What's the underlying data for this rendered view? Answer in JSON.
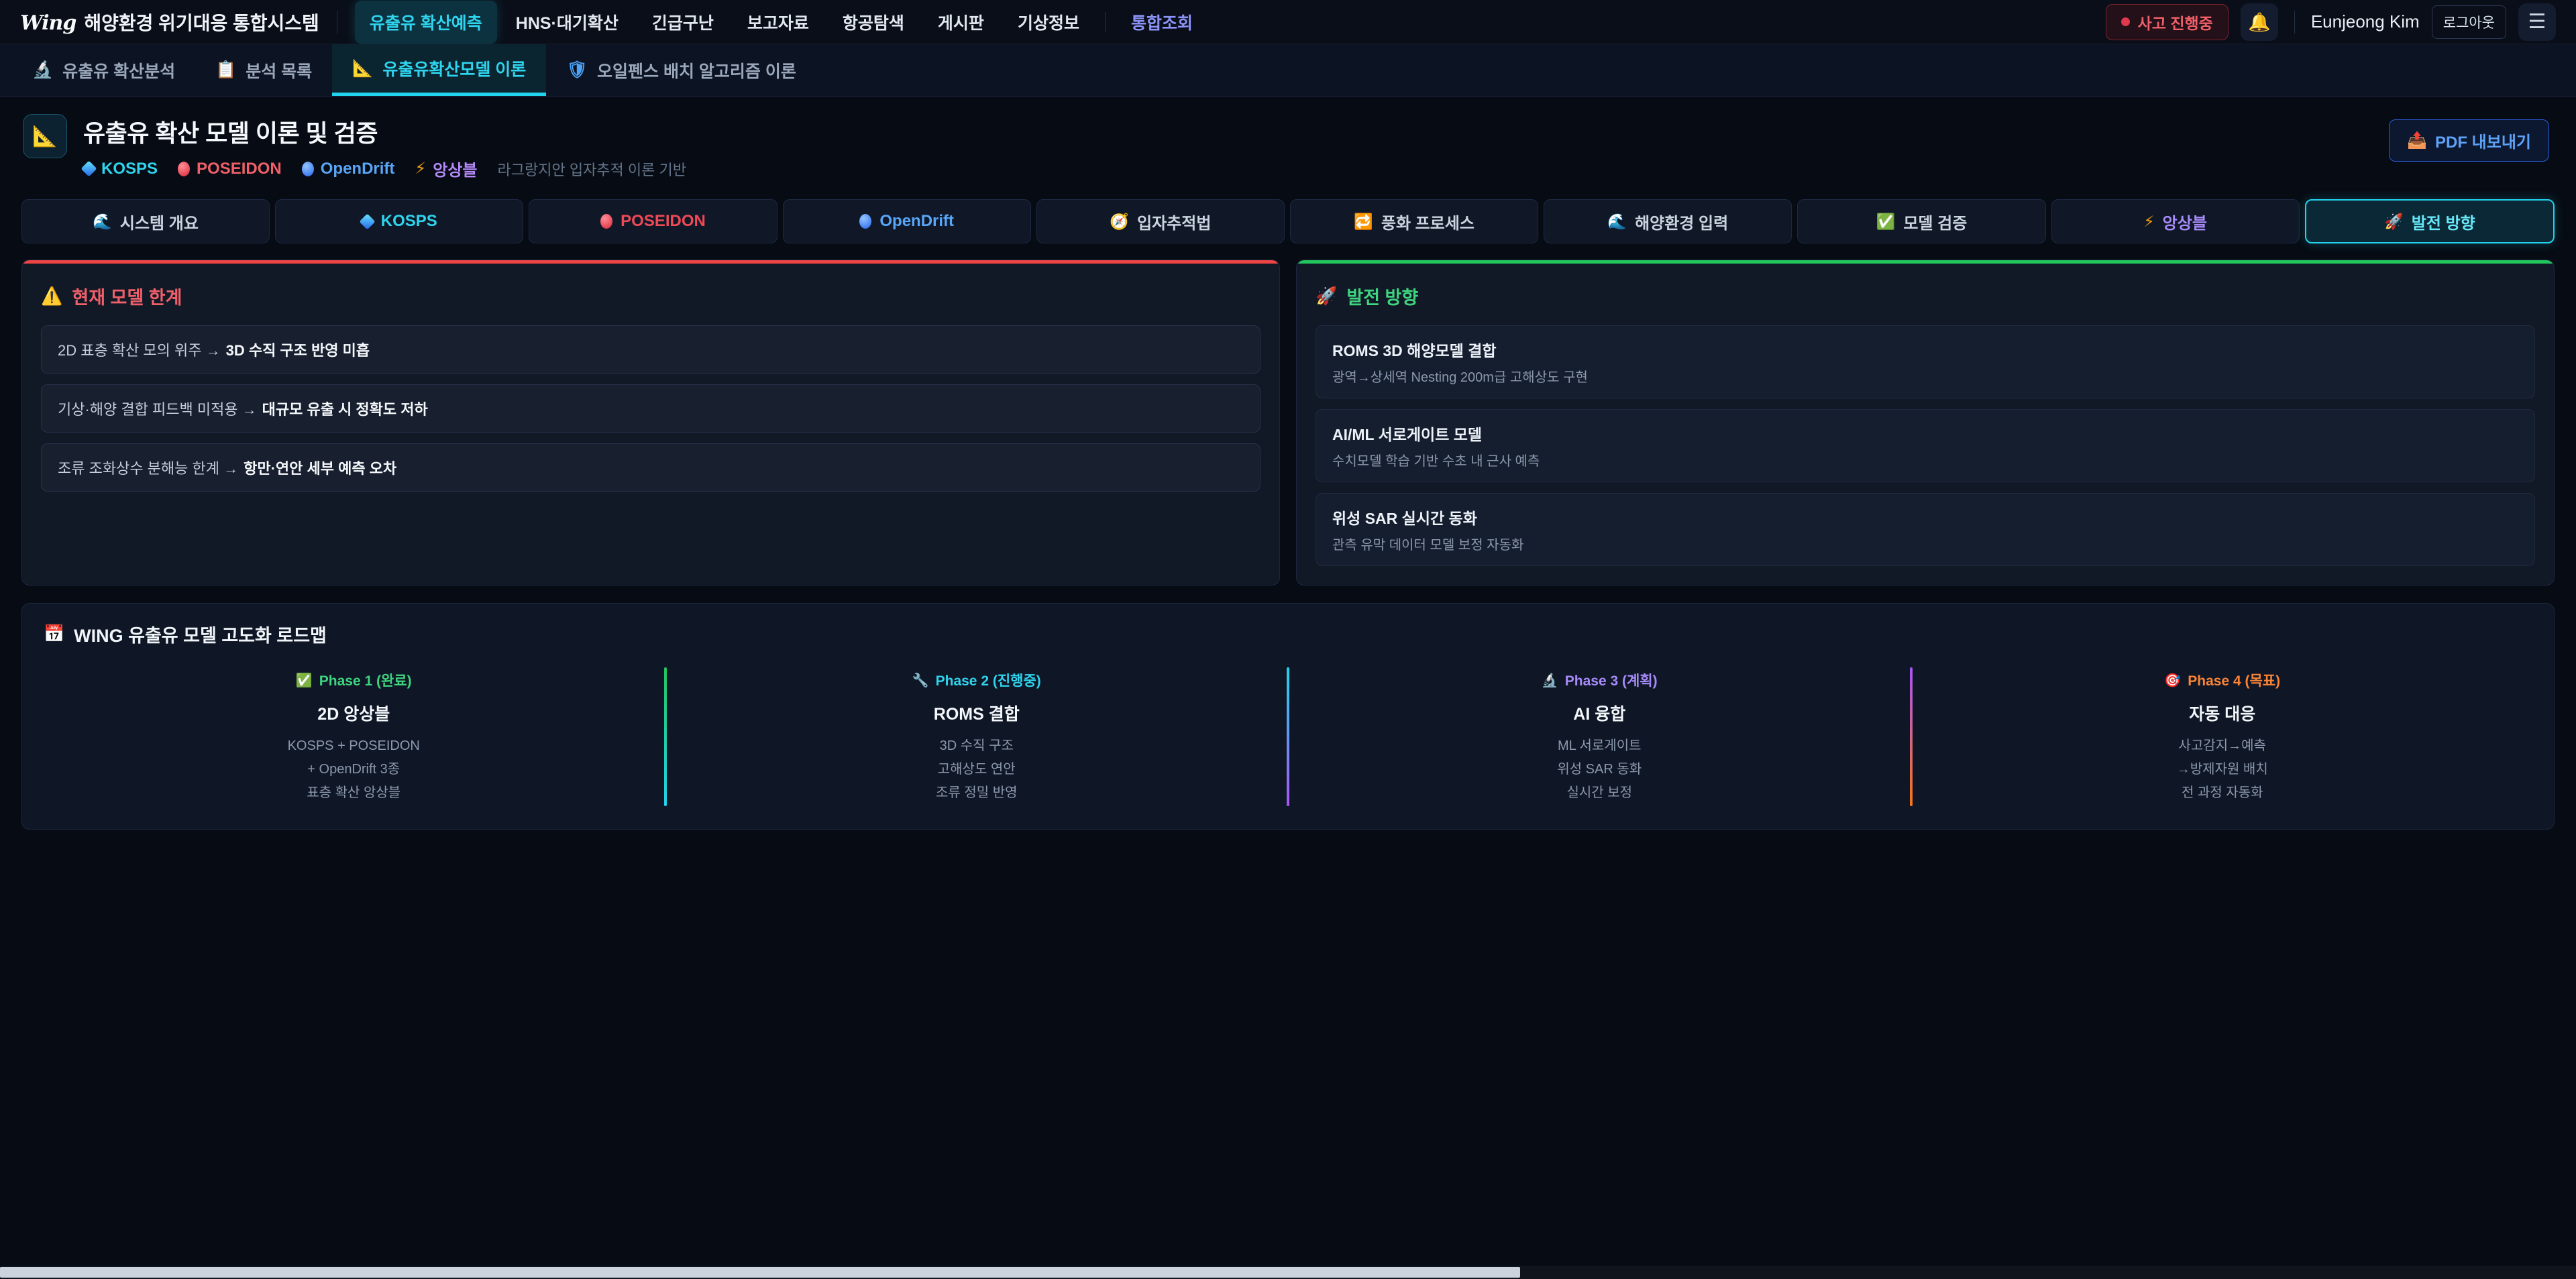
{
  "colors": {
    "accent_cyan": "#22d3ee",
    "danger_red": "#ef4444",
    "success_green": "#22c55e",
    "purple": "#a78bfa",
    "orange": "#fb923c",
    "blue": "#60a5fa",
    "page_bg": "#070b13"
  },
  "navbar": {
    "brand_script": "Wing",
    "brand_title": "해양환경 위기대응 통합시스템",
    "items": [
      {
        "label": "유출유 확산예측"
      },
      {
        "label": "HNS·대기확산"
      },
      {
        "label": "긴급구난"
      },
      {
        "label": "보고자료"
      },
      {
        "label": "항공탐색"
      },
      {
        "label": "게시판"
      },
      {
        "label": "기상정보"
      },
      {
        "label": "통합조회"
      }
    ],
    "alert_badge": "사고 진행중",
    "bell_glyph": "🔔",
    "user_name": "Eunjeong Kim",
    "logout_label": "로그아웃",
    "hamburger_glyph": "☰"
  },
  "subnav": {
    "items": [
      {
        "glyph": "🔬",
        "label": "유출유 확산분석"
      },
      {
        "glyph": "📋",
        "label": "분석 목록"
      },
      {
        "glyph": "📐",
        "label": "유출유확산모델 이론"
      },
      {
        "glyph": "🛡",
        "label": "오일펜스 배치 알고리즘 이론"
      }
    ]
  },
  "header": {
    "icon_glyph": "📐",
    "title": "유출유 확산 모델 이론 및 검증",
    "badges": [
      {
        "label": "KOSPS"
      },
      {
        "label": "POSEIDON"
      },
      {
        "label": "OpenDrift"
      },
      {
        "glyph": "⚡",
        "label": "앙상블"
      }
    ],
    "note": "라그랑지안 입자추적 이론 기반",
    "pdf_button": {
      "glyph": "📤",
      "label": "PDF 내보내기"
    }
  },
  "section_tabs": [
    {
      "glyph": "🌊",
      "label": "시스템 개요"
    },
    {
      "glyph": "",
      "label": "KOSPS"
    },
    {
      "glyph": "",
      "label": "POSEIDON"
    },
    {
      "glyph": "",
      "label": "OpenDrift"
    },
    {
      "glyph": "🧭",
      "label": "입자추적법"
    },
    {
      "glyph": "🔁",
      "label": "풍화 프로세스"
    },
    {
      "glyph": "🌊",
      "label": "해양환경 입력"
    },
    {
      "glyph": "✅",
      "label": "모델 검증"
    },
    {
      "glyph": "⚡",
      "label": "앙상블"
    },
    {
      "glyph": "🚀",
      "label": "발전 방향"
    }
  ],
  "limitations": {
    "icon_glyph": "⚠️",
    "title": "현재 모델 한계",
    "items": [
      {
        "pre": "2D 표층 확산 모의 위주 →",
        "bold": "3D 수직 구조 반영 미흡"
      },
      {
        "pre": "기상·해양 결합 피드백 미적용 →",
        "bold": "대규모 유출 시 정확도 저하"
      },
      {
        "pre": "조류 조화상수 분해능 한계 →",
        "bold": "항만·연안 세부 예측 오차"
      }
    ]
  },
  "future": {
    "icon_glyph": "🚀",
    "title": "발전 방향",
    "items": [
      {
        "title": "ROMS 3D 해양모델 결합",
        "desc": "광역→상세역 Nesting 200m급 고해상도 구현"
      },
      {
        "title": "AI/ML 서로게이트 모델",
        "desc": "수치모델 학습 기반 수초 내 근사 예측"
      },
      {
        "title": "위성 SAR 실시간 동화",
        "desc": "관측 유막 데이터 모델 보정 자동화"
      }
    ]
  },
  "roadmap": {
    "icon_glyph": "📅",
    "title": "WING 유출유 모델 고도화 로드맵",
    "phases": [
      {
        "glyph": "✅",
        "phase": "Phase 1 (완료)",
        "name": "2D 앙상블",
        "lines": [
          "KOSPS + POSEIDON",
          "+ OpenDrift 3종",
          "표층 확산 앙상블"
        ]
      },
      {
        "glyph": "🔧",
        "phase": "Phase 2 (진행중)",
        "name": "ROMS 결합",
        "lines": [
          "3D 수직 구조",
          "고해상도 연안",
          "조류 정밀 반영"
        ]
      },
      {
        "glyph": "🔬",
        "phase": "Phase 3 (계획)",
        "name": "AI 융합",
        "lines": [
          "ML 서로게이트",
          "위성 SAR 동화",
          "실시간 보정"
        ]
      },
      {
        "glyph": "🎯",
        "phase": "Phase 4 (목표)",
        "name": "자동 대응",
        "lines": [
          "사고감지→예측",
          "→방제자원 배치",
          "전 과정 자동화"
        ]
      }
    ]
  }
}
